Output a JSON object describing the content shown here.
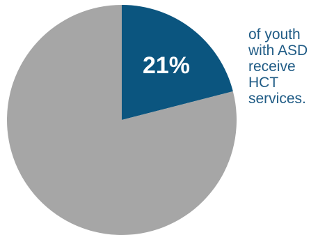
{
  "chart_data": {
    "type": "pie",
    "slices": [
      {
        "label": "21%",
        "value": 21,
        "color": "#0b557f"
      },
      {
        "label": "",
        "value": 79,
        "color": "#a6a6a6"
      }
    ]
  },
  "caption": {
    "lines": [
      "of youth",
      "with ASD",
      "receive",
      "HCT",
      "services."
    ]
  },
  "colors": {
    "caption": "#1f5b85",
    "highlight": "#0b557f",
    "remainder": "#a6a6a6"
  }
}
